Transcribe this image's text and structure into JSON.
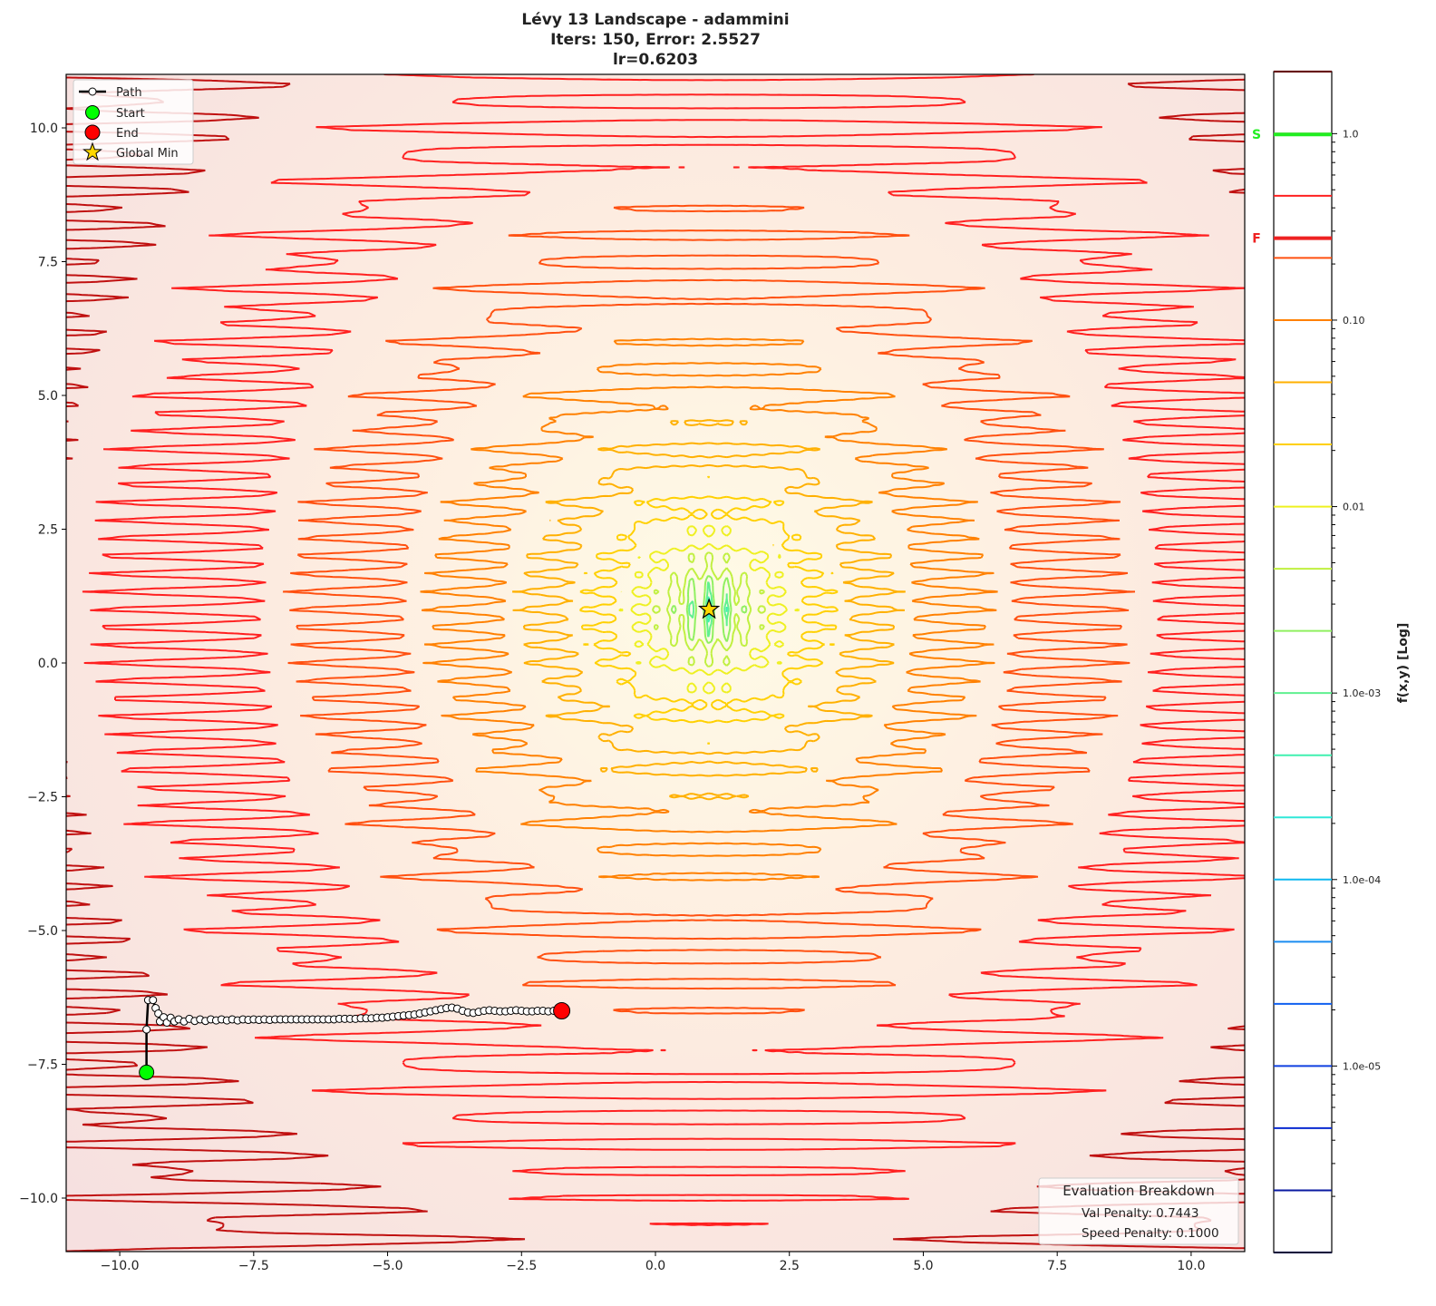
{
  "chart_data": {
    "type": "contour",
    "title_lines": [
      "Lévy 13 Landscape - adammini",
      "Iters: 150, Error: 2.5527",
      "lr=0.6203"
    ],
    "xlim": [
      -11,
      11
    ],
    "ylim": [
      -11,
      11
    ],
    "x_ticks": [
      -10,
      -7.5,
      -5,
      -2.5,
      0,
      2.5,
      5,
      7.5,
      10
    ],
    "x_tick_labels": [
      "−10.0",
      "−7.5",
      "−5.0",
      "−2.5",
      "0.0",
      "2.5",
      "5.0",
      "7.5",
      "10.0"
    ],
    "y_ticks": [
      10,
      7.5,
      5,
      2.5,
      0,
      -2.5,
      -5,
      -7.5,
      -10
    ],
    "y_tick_labels": [
      "10.0",
      "7.5",
      "5.0",
      "2.5",
      "0.0",
      "−2.5",
      "−5.0",
      "−7.5",
      "−10.0"
    ],
    "grid": false,
    "legend": {
      "placement": "top-left",
      "entries": [
        {
          "label": "Path",
          "marker": "line-circle",
          "color": "#000000"
        },
        {
          "label": "Start",
          "marker": "circle",
          "color": "#00ff00"
        },
        {
          "label": "End",
          "marker": "circle",
          "color": "#ff0000"
        },
        {
          "label": "Global Min",
          "marker": "star",
          "color": "#ffd700"
        }
      ]
    },
    "global_min": [
      1,
      1
    ],
    "start": [
      -9.5,
      -7.65
    ],
    "end": [
      -1.75,
      -6.5
    ],
    "path": [
      [
        -9.5,
        -7.65
      ],
      [
        -9.5,
        -6.85
      ],
      [
        -9.47,
        -6.3
      ],
      [
        -9.38,
        -6.3
      ],
      [
        -9.33,
        -6.45
      ],
      [
        -9.28,
        -6.55
      ],
      [
        -9.25,
        -6.7
      ],
      [
        -9.18,
        -6.62
      ],
      [
        -9.12,
        -6.72
      ],
      [
        -9.05,
        -6.63
      ],
      [
        -8.98,
        -6.7
      ],
      [
        -8.9,
        -6.66
      ],
      [
        -8.8,
        -6.7
      ],
      [
        -8.7,
        -6.65
      ],
      [
        -8.6,
        -6.69
      ],
      [
        -8.5,
        -6.66
      ],
      [
        -8.4,
        -6.69
      ],
      [
        -8.3,
        -6.66
      ],
      [
        -8.2,
        -6.68
      ],
      [
        -8.1,
        -6.66
      ],
      [
        -8.0,
        -6.68
      ],
      [
        -7.9,
        -6.66
      ],
      [
        -7.8,
        -6.68
      ],
      [
        -7.7,
        -6.66
      ],
      [
        -7.6,
        -6.67
      ],
      [
        -7.5,
        -6.66
      ],
      [
        -7.4,
        -6.67
      ],
      [
        -7.3,
        -6.66
      ],
      [
        -7.2,
        -6.67
      ],
      [
        -7.1,
        -6.66
      ],
      [
        -7.0,
        -6.66
      ],
      [
        -6.9,
        -6.66
      ],
      [
        -6.8,
        -6.66
      ],
      [
        -6.7,
        -6.66
      ],
      [
        -6.6,
        -6.66
      ],
      [
        -6.5,
        -6.66
      ],
      [
        -6.4,
        -6.66
      ],
      [
        -6.3,
        -6.66
      ],
      [
        -6.2,
        -6.66
      ],
      [
        -6.1,
        -6.66
      ],
      [
        -6.0,
        -6.66
      ],
      [
        -5.9,
        -6.65
      ],
      [
        -5.8,
        -6.65
      ],
      [
        -5.7,
        -6.65
      ],
      [
        -5.6,
        -6.65
      ],
      [
        -5.5,
        -6.64
      ],
      [
        -5.4,
        -6.64
      ],
      [
        -5.3,
        -6.64
      ],
      [
        -5.2,
        -6.63
      ],
      [
        -5.1,
        -6.63
      ],
      [
        -5.0,
        -6.62
      ],
      [
        -4.9,
        -6.61
      ],
      [
        -4.8,
        -6.6
      ],
      [
        -4.7,
        -6.59
      ],
      [
        -4.6,
        -6.58
      ],
      [
        -4.5,
        -6.57
      ],
      [
        -4.4,
        -6.55
      ],
      [
        -4.3,
        -6.53
      ],
      [
        -4.2,
        -6.51
      ],
      [
        -4.1,
        -6.49
      ],
      [
        -4.0,
        -6.47
      ],
      [
        -3.9,
        -6.45
      ],
      [
        -3.8,
        -6.44
      ],
      [
        -3.7,
        -6.46
      ],
      [
        -3.6,
        -6.5
      ],
      [
        -3.5,
        -6.53
      ],
      [
        -3.4,
        -6.54
      ],
      [
        -3.3,
        -6.52
      ],
      [
        -3.2,
        -6.5
      ],
      [
        -3.1,
        -6.49
      ],
      [
        -3.0,
        -6.5
      ],
      [
        -2.9,
        -6.51
      ],
      [
        -2.8,
        -6.51
      ],
      [
        -2.7,
        -6.5
      ],
      [
        -2.6,
        -6.49
      ],
      [
        -2.5,
        -6.5
      ],
      [
        -2.4,
        -6.51
      ],
      [
        -2.3,
        -6.51
      ],
      [
        -2.2,
        -6.5
      ],
      [
        -2.1,
        -6.5
      ],
      [
        -2.0,
        -6.51
      ],
      [
        -1.9,
        -6.5
      ],
      [
        -1.75,
        -6.5
      ]
    ],
    "colorbar": {
      "label": "f(x,y) [Log]",
      "scale": "log",
      "range": [
        1e-06,
        2.15
      ],
      "tick_values": [
        1.0,
        0.1,
        0.01,
        0.001,
        0.0001,
        1e-05
      ],
      "tick_labels": [
        "1.0",
        "0.10",
        "0.01",
        "1.0e-03",
        "1.0e-04",
        "1.0e-05"
      ],
      "markers": [
        {
          "label": "S",
          "value": 0.99,
          "color": "#22ee22"
        },
        {
          "label": "F",
          "value": 0.275,
          "color": "#ee2222"
        }
      ]
    },
    "contour_level_exponents_step": "1/3 decade from 1e-6",
    "contour_colors": [
      "#00003a",
      "#0a1aa0",
      "#0a2ad0",
      "#1040e0",
      "#1060f0",
      "#1a8cf0",
      "#10b8f0",
      "#30e8d8",
      "#40f0b0",
      "#60f090",
      "#90f060",
      "#c0f040",
      "#eef020",
      "#ffd000",
      "#ffb000",
      "#ff8000",
      "#ff5010",
      "#ff2020",
      "#c01010",
      "#600000"
    ],
    "annotation_box": {
      "title": "Evaluation Breakdown",
      "lines": [
        "Val Penalty: 0.7443",
        "Speed Penalty: 0.1000"
      ]
    }
  }
}
